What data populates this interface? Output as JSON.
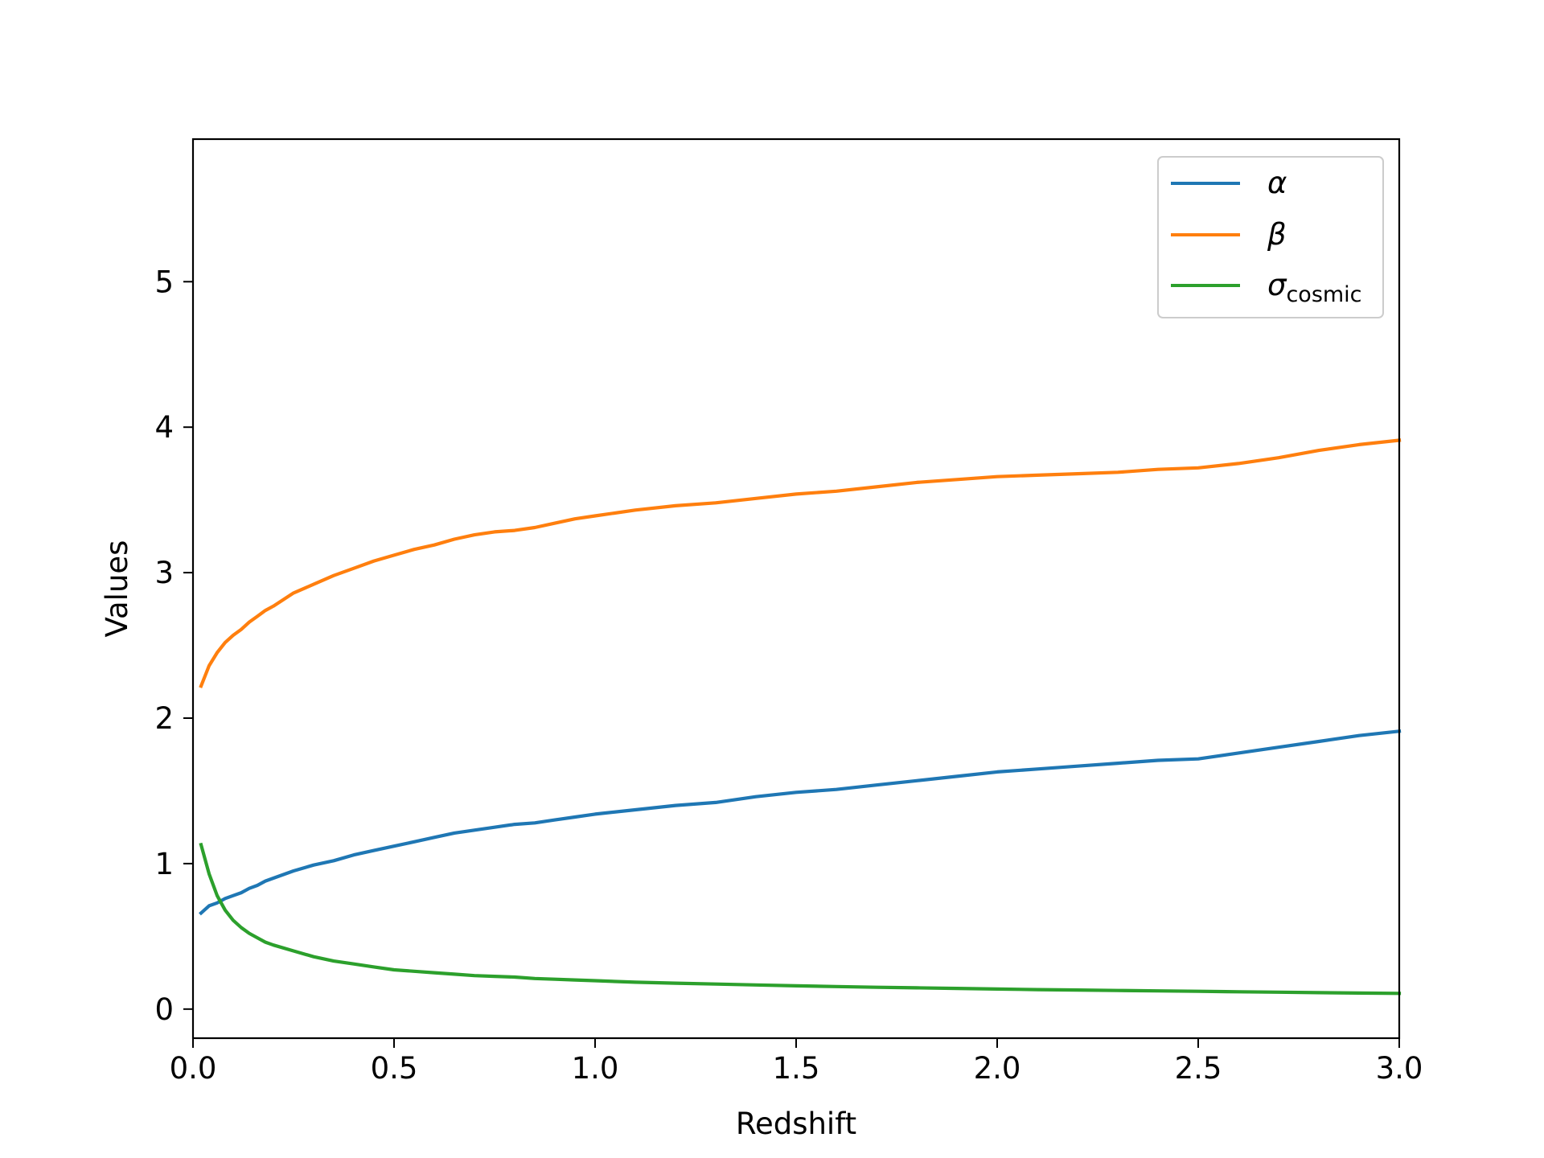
{
  "chart_data": {
    "type": "line",
    "title": "",
    "xlabel": "Redshift",
    "ylabel": "Values",
    "xlim": [
      0.0,
      3.0
    ],
    "ylim": [
      -0.2,
      5.98
    ],
    "x_ticks": [
      "0.0",
      "0.5",
      "1.0",
      "1.5",
      "2.0",
      "2.5",
      "3.0"
    ],
    "y_ticks": [
      "0",
      "1",
      "2",
      "3",
      "4",
      "5"
    ],
    "grid": false,
    "legend_placement": "upper right",
    "x": [
      0.02,
      0.04,
      0.06,
      0.08,
      0.1,
      0.12,
      0.14,
      0.16,
      0.18,
      0.2,
      0.25,
      0.3,
      0.35,
      0.4,
      0.45,
      0.5,
      0.55,
      0.6,
      0.65,
      0.7,
      0.75,
      0.8,
      0.85,
      0.9,
      0.95,
      1.0,
      1.1,
      1.2,
      1.3,
      1.4,
      1.5,
      1.6,
      1.7,
      1.8,
      1.9,
      2.0,
      2.1,
      2.2,
      2.3,
      2.4,
      2.5,
      2.6,
      2.7,
      2.8,
      2.9,
      3.0
    ],
    "series": [
      {
        "name": "α",
        "color": "#1f77b4",
        "values": [
          0.66,
          0.71,
          0.73,
          0.76,
          0.78,
          0.8,
          0.83,
          0.85,
          0.88,
          0.9,
          0.95,
          0.99,
          1.02,
          1.06,
          1.09,
          1.12,
          1.15,
          1.18,
          1.21,
          1.23,
          1.25,
          1.27,
          1.28,
          1.3,
          1.32,
          1.34,
          1.37,
          1.4,
          1.42,
          1.46,
          1.49,
          1.51,
          1.54,
          1.57,
          1.6,
          1.63,
          1.65,
          1.67,
          1.69,
          1.71,
          1.72,
          1.76,
          1.8,
          1.84,
          1.88,
          1.91
        ]
      },
      {
        "name": "β",
        "color": "#ff7f0e",
        "values": [
          2.22,
          2.36,
          2.45,
          2.52,
          2.57,
          2.61,
          2.66,
          2.7,
          2.74,
          2.77,
          2.86,
          2.92,
          2.98,
          3.03,
          3.08,
          3.12,
          3.16,
          3.19,
          3.23,
          3.26,
          3.28,
          3.29,
          3.31,
          3.34,
          3.37,
          3.39,
          3.43,
          3.46,
          3.48,
          3.51,
          3.54,
          3.56,
          3.59,
          3.62,
          3.64,
          3.66,
          3.67,
          3.68,
          3.69,
          3.71,
          3.72,
          3.75,
          3.79,
          3.84,
          3.88,
          3.91
        ]
      },
      {
        "name": "σcosmic",
        "label_main": "σ",
        "label_sub": "cosmic",
        "color": "#2ca02c",
        "values": [
          1.13,
          0.93,
          0.78,
          0.68,
          0.61,
          0.56,
          0.52,
          0.49,
          0.46,
          0.44,
          0.4,
          0.36,
          0.33,
          0.31,
          0.29,
          0.27,
          0.26,
          0.25,
          0.24,
          0.23,
          0.225,
          0.22,
          0.21,
          0.205,
          0.2,
          0.195,
          0.185,
          0.178,
          0.172,
          0.166,
          0.16,
          0.155,
          0.15,
          0.146,
          0.142,
          0.138,
          0.134,
          0.131,
          0.128,
          0.125,
          0.122,
          0.119,
          0.116,
          0.113,
          0.11,
          0.108
        ]
      }
    ]
  }
}
